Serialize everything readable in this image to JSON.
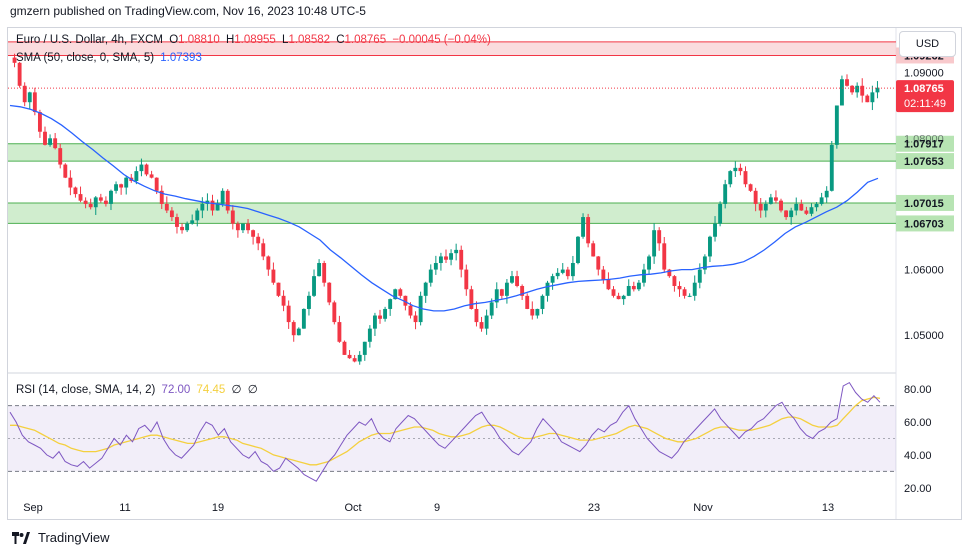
{
  "header": {
    "publisher_line": "gmzern published on TradingView.com, Nov 16, 2023 10:48 UTC-5"
  },
  "legend": {
    "symbol": "Euro / U.S. Dollar, 4h, FXCM",
    "ohlc": {
      "o_label": "O",
      "o": "1.08810",
      "h_label": "H",
      "h": "1.08955",
      "l_label": "L",
      "l": "1.08582",
      "c_label": "C",
      "c": "1.08765",
      "change": "−0.00045 (−0.04%)"
    },
    "sma_label": "SMA (50, close, 0, SMA, 5)",
    "sma_value": "1.07393",
    "rsi_label": "RSI (14, close, SMA, 14, 2)",
    "rsi_value": "72.00",
    "rsi_ma_value": "74.45",
    "rsi_extra1": "∅",
    "rsi_extra2": "∅"
  },
  "currency_button": "USD",
  "footer": {
    "brand": "TradingView"
  },
  "colors": {
    "up": "#089981",
    "down": "#f23645",
    "sma": "#2962ff",
    "rsi": "#7e57c2",
    "rsi_ma": "#f4d03f",
    "green_zone": "#b7e4b3",
    "red_zone": "#f8c9cc",
    "price_label": "#f23645",
    "zone_label": "#b7e4b3"
  },
  "chart_data": [
    {
      "type": "candlestick",
      "title": "Euro / U.S. Dollar, 4h, FXCM",
      "y_ticks": [
        "1.09000",
        "1.06000",
        "1.05000"
      ],
      "ylim": [
        1.0447,
        1.0965
      ],
      "x_ticks": [
        "Sep",
        "11",
        "19",
        "Oct",
        "9",
        "23",
        "Nov",
        "13"
      ],
      "zones": [
        {
          "from": 1.09262,
          "to": 1.0947,
          "color": "red",
          "label": "1.09262"
        },
        {
          "from": 1.07653,
          "to": 1.07917,
          "color": "green",
          "label_top": "1.07917",
          "label_bottom": "1.07653"
        },
        {
          "from": 1.06703,
          "to": 1.07015,
          "color": "green",
          "label_top": "1.07015",
          "label_bottom": "1.06703"
        }
      ],
      "last_price": {
        "value": "1.08765",
        "countdown": "02:11:49",
        "raw": 1.08765
      },
      "partial_axis_label": "1.08000",
      "close_path": [
        1.0915,
        1.088,
        1.0855,
        1.087,
        1.084,
        1.081,
        1.079,
        1.08,
        1.0785,
        1.076,
        1.074,
        1.0725,
        1.0715,
        1.0705,
        1.07,
        1.0695,
        1.071,
        1.0705,
        1.07,
        1.072,
        1.073,
        1.0725,
        1.074,
        1.0735,
        1.075,
        1.076,
        1.0745,
        1.074,
        1.072,
        1.07,
        1.069,
        1.068,
        1.0665,
        1.066,
        1.067,
        1.0675,
        1.069,
        1.07,
        1.0705,
        1.069,
        1.07,
        1.072,
        1.069,
        1.067,
        1.066,
        1.067,
        1.066,
        1.065,
        1.064,
        1.062,
        1.06,
        1.058,
        1.056,
        1.0545,
        1.052,
        1.05,
        1.051,
        1.054,
        1.056,
        1.059,
        1.061,
        1.058,
        1.055,
        1.052,
        1.049,
        1.047,
        1.0465,
        1.046,
        1.047,
        1.049,
        1.051,
        1.053,
        1.0525,
        1.054,
        1.0555,
        1.057,
        1.056,
        1.0545,
        1.053,
        1.052,
        1.056,
        1.058,
        1.06,
        1.061,
        1.062,
        1.0615,
        1.0625,
        1.063,
        1.06,
        1.057,
        1.054,
        1.052,
        1.051,
        1.053,
        1.055,
        1.057,
        1.056,
        1.058,
        1.059,
        1.0575,
        1.056,
        1.054,
        1.053,
        1.054,
        1.056,
        1.058,
        1.059,
        1.0595,
        1.06,
        1.059,
        1.061,
        1.065,
        1.068,
        1.064,
        1.062,
        1.06,
        1.0585,
        1.057,
        1.056,
        1.0555,
        1.056,
        1.0575,
        1.057,
        1.058,
        1.06,
        1.062,
        1.066,
        1.064,
        1.06,
        1.059,
        1.0575,
        1.057,
        1.056,
        1.056,
        1.058,
        1.06,
        1.062,
        1.065,
        1.067,
        1.07,
        1.073,
        1.075,
        1.0755,
        1.075,
        1.073,
        1.072,
        1.07,
        1.069,
        1.07,
        1.071,
        1.0705,
        1.069,
        1.068,
        1.069,
        1.07,
        1.069,
        1.0685,
        1.0695,
        1.07,
        1.071,
        1.072,
        1.079,
        1.085,
        1.089,
        1.088,
        1.087,
        1.088,
        1.0865,
        1.0855,
        1.087,
        1.0877
      ],
      "sma_path": [
        1.085,
        1.0848,
        1.0844,
        1.0838,
        1.083,
        1.082,
        1.0808,
        1.0795,
        1.0783,
        1.077,
        1.0758,
        1.0745,
        1.0735,
        1.0727,
        1.072,
        1.0715,
        1.0712,
        1.0708,
        1.0705,
        1.0702,
        1.07,
        1.0698,
        1.0696,
        1.0693,
        1.0688,
        1.0683,
        1.0678,
        1.0672,
        1.0665,
        1.0655,
        1.0645,
        1.063,
        1.0618,
        1.0605,
        1.0592,
        1.058,
        1.057,
        1.056,
        1.0553,
        1.0545,
        1.054,
        1.0537,
        1.0537,
        1.054,
        1.0545,
        1.0548,
        1.055,
        1.0553,
        1.0556,
        1.056,
        1.0565,
        1.057,
        1.0574,
        1.0577,
        1.058,
        1.0582,
        1.0583,
        1.0584,
        1.0585,
        1.0587,
        1.059,
        1.0592,
        1.0593,
        1.0595,
        1.0598,
        1.06,
        1.06,
        1.0603,
        1.0605,
        1.0606,
        1.0608,
        1.0612,
        1.062,
        1.063,
        1.0642,
        1.0655,
        1.0665,
        1.0672,
        1.068,
        1.0688,
        1.0695,
        1.0705,
        1.0718,
        1.0733,
        1.0739
      ],
      "series": [
        {
          "name": "SMA (50, close, 0, SMA, 5)",
          "last": 1.07393
        }
      ]
    },
    {
      "type": "line",
      "title": "RSI (14, close, SMA, 14, 2)",
      "y_ticks": [
        "80.00",
        "60.00",
        "40.00",
        "20.00"
      ],
      "ylim": [
        15,
        88
      ],
      "band": [
        30,
        70
      ],
      "midline": 50,
      "rsi": [
        66,
        60,
        52,
        48,
        46,
        44,
        40,
        38,
        42,
        36,
        34,
        33,
        36,
        32,
        35,
        38,
        44,
        50,
        46,
        52,
        48,
        56,
        58,
        54,
        60,
        50,
        44,
        40,
        38,
        42,
        46,
        54,
        60,
        58,
        52,
        56,
        48,
        44,
        40,
        38,
        42,
        36,
        34,
        30,
        32,
        38,
        35,
        32,
        28,
        26,
        24,
        30,
        36,
        40,
        46,
        52,
        56,
        60,
        58,
        62,
        54,
        50,
        48,
        56,
        60,
        64,
        62,
        58,
        54,
        50,
        46,
        44,
        48,
        52,
        56,
        60,
        64,
        66,
        60,
        56,
        50,
        46,
        42,
        40,
        44,
        48,
        56,
        62,
        58,
        54,
        48,
        46,
        44,
        42,
        46,
        52,
        56,
        54,
        58,
        60,
        66,
        70,
        62,
        56,
        50,
        46,
        42,
        40,
        38,
        42,
        48,
        52,
        56,
        60,
        64,
        68,
        62,
        58,
        54,
        50,
        54,
        56,
        60,
        62,
        66,
        70,
        72,
        66,
        62,
        56,
        52,
        50,
        54,
        56,
        60,
        62,
        82,
        84,
        78,
        74,
        72,
        76,
        72
      ],
      "rsi_ma": [
        58,
        58,
        57,
        56,
        55,
        53,
        51,
        49,
        47,
        46,
        44,
        43,
        42,
        42,
        42,
        43,
        44,
        46,
        47,
        48,
        49,
        50,
        51,
        52,
        52,
        51,
        50,
        49,
        48,
        47,
        47,
        48,
        49,
        50,
        51,
        51,
        50,
        49,
        47,
        46,
        45,
        44,
        42,
        40,
        39,
        38,
        37,
        36,
        35,
        34,
        34,
        35,
        36,
        38,
        40,
        42,
        45,
        48,
        50,
        52,
        53,
        53,
        53,
        54,
        55,
        56,
        57,
        57,
        56,
        55,
        53,
        52,
        51,
        51,
        52,
        53,
        55,
        57,
        58,
        58,
        57,
        55,
        53,
        51,
        50,
        50,
        51,
        52,
        53,
        53,
        52,
        51,
        50,
        49,
        49,
        49,
        50,
        51,
        52,
        53,
        55,
        57,
        58,
        57,
        56,
        54,
        52,
        50,
        49,
        48,
        48,
        49,
        50,
        52,
        54,
        56,
        57,
        57,
        56,
        55,
        55,
        55,
        56,
        57,
        58,
        60,
        62,
        63,
        63,
        62,
        60,
        58,
        57,
        57,
        57,
        58,
        62,
        66,
        70,
        73,
        74,
        75,
        74.45
      ],
      "series": [
        {
          "name": "RSI",
          "last": 72.0
        },
        {
          "name": "RSI-based MA",
          "last": 74.45
        }
      ]
    }
  ]
}
